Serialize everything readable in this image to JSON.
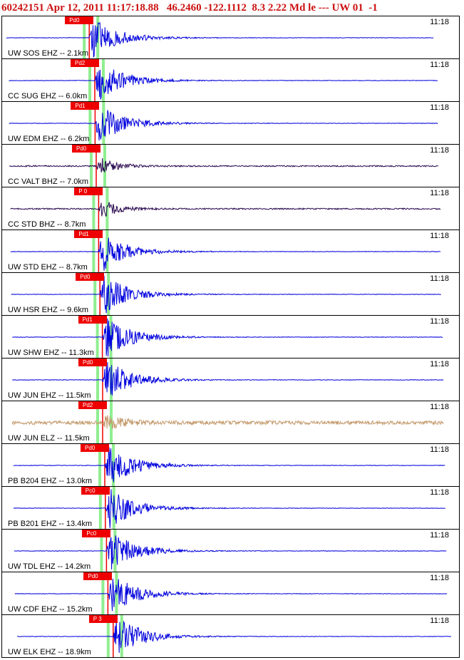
{
  "header": {
    "title": "60242151 Apr 12, 2011 11:17:18.88   46.2460 -122.1112  8.3 2.22 Md le --- UW 01  -1"
  },
  "colors": {
    "blue_trace": "#0000dd",
    "dark_trace": "#2a0a50",
    "tan_trace": "#c49a6c",
    "pick_red": "#ee0000",
    "pick_green": "#90ee90",
    "header_red": "#cc1111"
  },
  "chart_data": {
    "type": "line",
    "title": "60242151 Apr 12, 2011 11:17:18.88   46.2460 -122.1112  8.3 2.22 Md le --- UW 01  -1",
    "series": [
      {
        "label": "UW SOS EHZ -- 2.1km",
        "time": "11:18",
        "pick": "Pd0",
        "color": "blue_trace",
        "distance_km": 2.1
      },
      {
        "label": "CC SUG EHZ -- 6.0km",
        "time": "11:18",
        "pick": "Pd2",
        "color": "blue_trace",
        "distance_km": 6.0
      },
      {
        "label": "UW EDM EHZ -- 6.2km",
        "time": "11:18",
        "pick": "Pd1",
        "color": "blue_trace",
        "distance_km": 6.2
      },
      {
        "label": "CC VALT BHZ -- 7.0km",
        "time": "11:18",
        "pick": "Pd0",
        "color": "dark_trace",
        "distance_km": 7.0
      },
      {
        "label": "CC STD BHZ -- 8.7km",
        "time": "11:18",
        "pick": "P 0",
        "color": "dark_trace",
        "distance_km": 8.7
      },
      {
        "label": "UW STD EHZ -- 8.7km",
        "time": "11:18",
        "pick": "Pd1",
        "color": "blue_trace",
        "distance_km": 8.7
      },
      {
        "label": "UW HSR EHZ -- 9.6km",
        "time": "11:18",
        "pick": "Pd0",
        "color": "blue_trace",
        "distance_km": 9.6
      },
      {
        "label": "UW SHW EHZ -- 11.3km",
        "time": "11:18",
        "pick": "Pd1",
        "color": "blue_trace",
        "distance_km": 11.3
      },
      {
        "label": "UW JUN EHZ -- 11.5km",
        "time": "11:18",
        "pick": "Pd0",
        "color": "blue_trace",
        "distance_km": 11.5
      },
      {
        "label": "UW JUN ELZ -- 11.5km",
        "time": "11:18",
        "pick": "Pd2",
        "color": "tan_trace",
        "distance_km": 11.5
      },
      {
        "label": "PB B204 EHZ -- 13.0km",
        "time": "11:18",
        "pick": "Pd0",
        "color": "blue_trace",
        "distance_km": 13.0
      },
      {
        "label": "PB B201 EHZ -- 13.4km",
        "time": "11:18",
        "pick": "Pc0",
        "color": "blue_trace",
        "distance_km": 13.4
      },
      {
        "label": "UW TDL EHZ -- 14.2km",
        "time": "11:18",
        "pick": "Pc0",
        "color": "blue_trace",
        "distance_km": 14.2
      },
      {
        "label": "UW CDF EHZ -- 15.2km",
        "time": "11:18",
        "pick": "Pd0",
        "color": "blue_trace",
        "distance_km": 15.2
      },
      {
        "label": "UW ELK EHZ -- 18.9km",
        "time": "11:18",
        "pick": "P 3",
        "color": "blue_trace",
        "distance_km": 18.9
      }
    ]
  }
}
